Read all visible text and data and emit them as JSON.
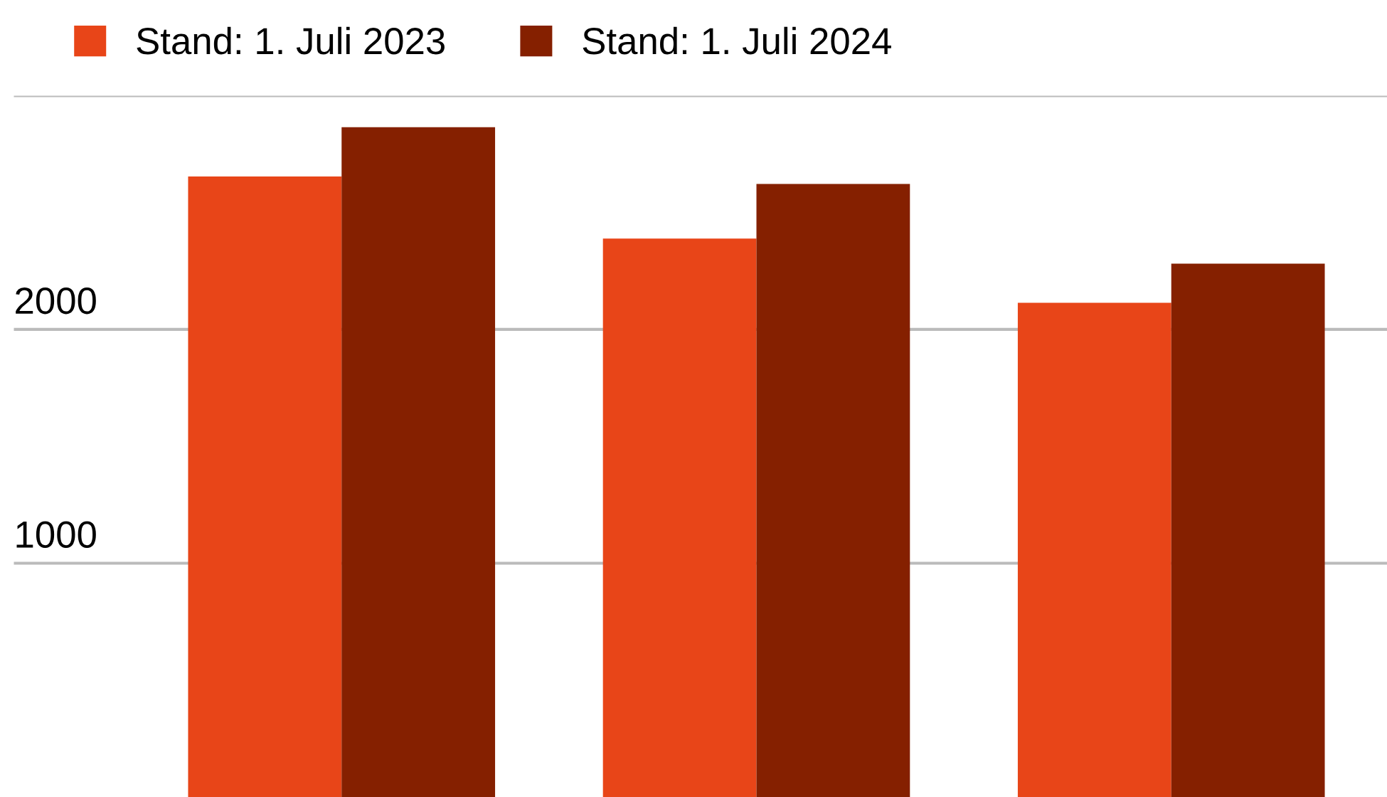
{
  "chart_data": {
    "type": "bar",
    "categories": [
      null,
      null,
      null
    ],
    "series": [
      {
        "name": "Stand: 1. Juli 2023",
        "color": "#e84518",
        "values": [
          2654,
          2389,
          2114
        ]
      },
      {
        "name": "Stand: 1. Juli 2024",
        "color": "#852000",
        "values": [
          2865,
          2622,
          2281
        ]
      }
    ],
    "ylim": [
      0,
      3000
    ],
    "yticks": [
      1000,
      2000,
      {
        "value": 3000,
        "label": null
      }
    ],
    "grid": "y",
    "legend": "top left",
    "tick_labels": "y"
  }
}
